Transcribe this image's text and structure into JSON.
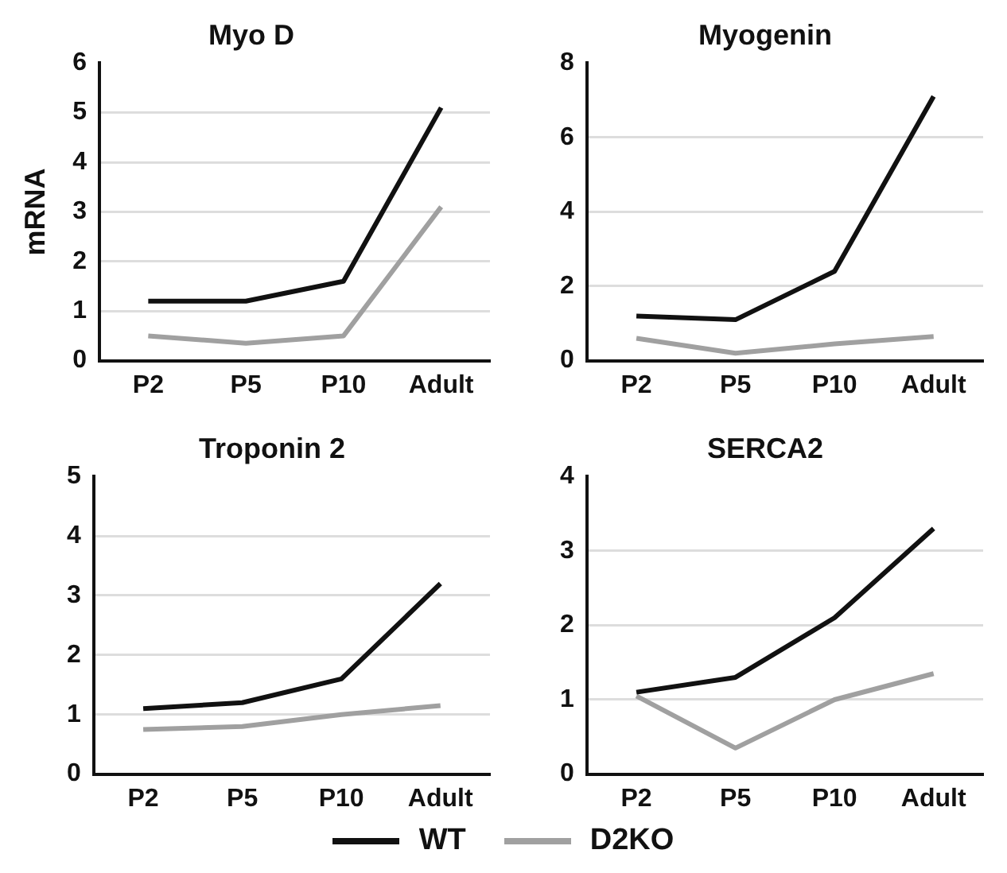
{
  "chart_data": [
    {
      "type": "line",
      "title": "Myo D",
      "ylabel": "mRNA",
      "categories": [
        "P2",
        "P5",
        "P10",
        "Adult"
      ],
      "ylim": [
        0,
        6
      ],
      "yticks": [
        0,
        1,
        2,
        3,
        4,
        5,
        6
      ],
      "grid": "y",
      "marker": "none",
      "line_style": "solid",
      "legend": "bottom",
      "series": [
        {
          "name": "WT",
          "color": "#111111",
          "values": [
            1.2,
            1.2,
            1.6,
            5.1
          ]
        },
        {
          "name": "D2KO",
          "color": "#a0a0a0",
          "values": [
            0.5,
            0.35,
            0.5,
            3.1
          ]
        }
      ]
    },
    {
      "type": "line",
      "title": "Myogenin",
      "categories": [
        "P2",
        "P5",
        "P10",
        "Adult"
      ],
      "ylim": [
        0,
        8
      ],
      "yticks": [
        0,
        2,
        4,
        6,
        8
      ],
      "grid": "y",
      "marker": "none",
      "line_style": "solid",
      "series": [
        {
          "color": "#111111",
          "values": [
            1.2,
            1.1,
            2.4,
            7.1
          ]
        },
        {
          "color": "#a0a0a0",
          "values": [
            0.6,
            0.2,
            0.45,
            0.65
          ]
        }
      ]
    },
    {
      "type": "line",
      "title": "Troponin 2",
      "categories": [
        "P2",
        "P5",
        "P10",
        "Adult"
      ],
      "ylim": [
        0,
        5
      ],
      "yticks": [
        0,
        1,
        2,
        3,
        4,
        5
      ],
      "grid": "y",
      "marker": "none",
      "line_style": "solid",
      "series": [
        {
          "color": "#111111",
          "values": [
            1.1,
            1.2,
            1.6,
            3.2
          ]
        },
        {
          "color": "#a0a0a0",
          "values": [
            0.75,
            0.8,
            1.0,
            1.15
          ]
        }
      ]
    },
    {
      "type": "line",
      "title": "SERCA2",
      "categories": [
        "P2",
        "P5",
        "P10",
        "Adult"
      ],
      "ylim": [
        0,
        4
      ],
      "yticks": [
        0,
        1,
        2,
        3,
        4
      ],
      "grid": "y",
      "marker": "none",
      "line_style": "solid",
      "series": [
        {
          "color": "#111111",
          "values": [
            1.1,
            1.3,
            2.1,
            3.3
          ]
        },
        {
          "color": "#a0a0a0",
          "values": [
            1.05,
            0.35,
            1.0,
            1.35
          ]
        }
      ]
    }
  ]
}
